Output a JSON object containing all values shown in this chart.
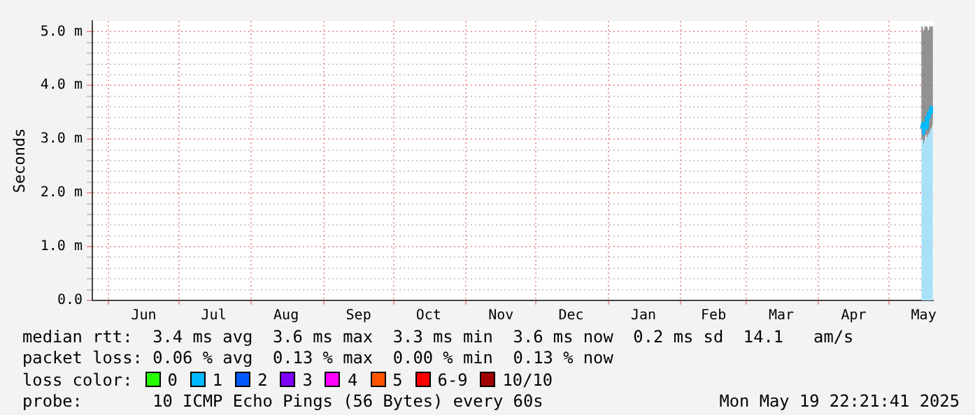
{
  "chart_data": {
    "type": "line",
    "ylabel": "Seconds",
    "legend_title": "loss color:",
    "legend": "bottom",
    "grid": true,
    "xlim": [
      "2024-05-25",
      "2025-05-20"
    ],
    "xticks": [
      {
        "value": "2024-06-01",
        "label": null
      },
      {
        "value": "2024-06-16",
        "label": "Jun"
      },
      {
        "value": "2024-07-01",
        "label": null
      },
      {
        "value": "2024-07-16",
        "label": "Jul"
      },
      {
        "value": "2024-08-01",
        "label": null
      },
      {
        "value": "2024-08-16",
        "label": "Aug"
      },
      {
        "value": "2024-09-01",
        "label": null
      },
      {
        "value": "2024-09-16",
        "label": "Sep"
      },
      {
        "value": "2024-10-01",
        "label": null
      },
      {
        "value": "2024-10-16",
        "label": "Oct"
      },
      {
        "value": "2024-11-01",
        "label": null
      },
      {
        "value": "2024-11-16",
        "label": "Nov"
      },
      {
        "value": "2024-12-01",
        "label": null
      },
      {
        "value": "2024-12-16",
        "label": "Dec"
      },
      {
        "value": "2025-01-01",
        "label": null
      },
      {
        "value": "2025-01-16",
        "label": "Jan"
      },
      {
        "value": "2025-02-01",
        "label": null
      },
      {
        "value": "2025-02-15",
        "label": "Feb"
      },
      {
        "value": "2025-03-01",
        "label": null
      },
      {
        "value": "2025-03-16",
        "label": "Mar"
      },
      {
        "value": "2025-04-01",
        "label": null
      },
      {
        "value": "2025-04-16",
        "label": "Apr"
      },
      {
        "value": "2025-05-01",
        "label": null
      },
      {
        "value": "2025-05-16",
        "label": "May"
      }
    ],
    "ylim": [
      0,
      5.2
    ],
    "yticks": [
      {
        "value": 0,
        "label": "0.0"
      },
      {
        "value": 0.2,
        "label": null
      },
      {
        "value": 0.4,
        "label": null
      },
      {
        "value": 0.6,
        "label": null
      },
      {
        "value": 0.8,
        "label": null
      },
      {
        "value": 1,
        "label": "1.0 m"
      },
      {
        "value": 1.2,
        "label": null
      },
      {
        "value": 1.4,
        "label": null
      },
      {
        "value": 1.6,
        "label": null
      },
      {
        "value": 1.8,
        "label": null
      },
      {
        "value": 2,
        "label": "2.0 m"
      },
      {
        "value": 2.2,
        "label": null
      },
      {
        "value": 2.4,
        "label": null
      },
      {
        "value": 2.6,
        "label": null
      },
      {
        "value": 2.8,
        "label": null
      },
      {
        "value": 3,
        "label": "3.0 m"
      },
      {
        "value": 3.2,
        "label": null
      },
      {
        "value": 3.4,
        "label": null
      },
      {
        "value": 3.6,
        "label": null
      },
      {
        "value": 3.8,
        "label": null
      },
      {
        "value": 4,
        "label": "4.0 m"
      },
      {
        "value": 4.2,
        "label": null
      },
      {
        "value": 4.4,
        "label": null
      },
      {
        "value": 4.6,
        "label": null
      },
      {
        "value": 4.8,
        "label": null
      },
      {
        "value": 5,
        "label": "5.0 m"
      }
    ],
    "x": [
      "2025-05-15T00:00",
      "2025-05-15T12:00",
      "2025-05-16T00:00",
      "2025-05-16T12:00",
      "2025-05-17T00:00",
      "2025-05-17T12:00",
      "2025-05-18T00:00",
      "2025-05-18T12:00",
      "2025-05-19T00:00",
      "2025-05-19T12:00",
      "2025-05-19T22:21"
    ],
    "series": [
      {
        "type": "area",
        "color": "#a8e0f8",
        "values": [
          3.0,
          3.0,
          2.9,
          3.0,
          3.1,
          3.0,
          3.1,
          3.1,
          3.2,
          3.2,
          3.3
        ]
      },
      {
        "color": "#00b8ff",
        "values": [
          3.2,
          3.3,
          3.1,
          3.3,
          3.4,
          3.2,
          3.5,
          3.4,
          3.6,
          3.5,
          3.6
        ],
        "lower": [
          3.0,
          3.0,
          2.9,
          3.0,
          3.1,
          3.0,
          3.1,
          3.1,
          3.2,
          3.2,
          3.3
        ],
        "upper": [
          5.1,
          5.1,
          5.0,
          5.1,
          5.1,
          5.1,
          5.0,
          5.1,
          5.1,
          5.1,
          5.1
        ]
      },
      {
        "name": "0",
        "color": "#26ff00",
        "values": [
          null,
          null,
          null,
          null,
          null,
          null,
          null,
          null,
          null,
          null,
          null
        ]
      },
      {
        "name": "1",
        "color": "#00b8ff",
        "values": [
          null,
          null,
          null,
          null,
          null,
          null,
          null,
          null,
          null,
          null,
          null
        ]
      },
      {
        "name": "2",
        "color": "#0059ff",
        "values": [
          null,
          null,
          null,
          null,
          null,
          null,
          null,
          null,
          null,
          null,
          null
        ]
      },
      {
        "name": "3",
        "color": "#7e00ff",
        "values": [
          null,
          null,
          null,
          null,
          null,
          null,
          null,
          null,
          null,
          null,
          null
        ]
      },
      {
        "name": "4",
        "color": "#ff00ff",
        "values": [
          null,
          null,
          null,
          null,
          null,
          null,
          null,
          null,
          null,
          null,
          null
        ]
      },
      {
        "name": "5",
        "color": "#ff5500",
        "values": [
          null,
          null,
          null,
          null,
          null,
          null,
          null,
          null,
          null,
          null,
          null
        ]
      },
      {
        "name": "6-9",
        "color": "#ff0000",
        "values": [
          null,
          null,
          null,
          null,
          null,
          null,
          null,
          null,
          null,
          null,
          null
        ]
      },
      {
        "name": "10/10",
        "color": "#a10000",
        "values": [
          null,
          null,
          null,
          null,
          null,
          null,
          null,
          null,
          null,
          null,
          null
        ]
      }
    ],
    "annotations": [
      "median rtt:  3.4 ms avg  3.6 ms max  3.3 ms min  3.6 ms now  0.2 ms sd  14.1   am/s",
      "packet loss: 0.06 % avg  0.13 % max  0.00 % min  0.13 % now",
      "probe:       10 ICMP Echo Pings (56 Bytes) every 60s",
      "Mon May 19 22:21:41 2025"
    ]
  }
}
